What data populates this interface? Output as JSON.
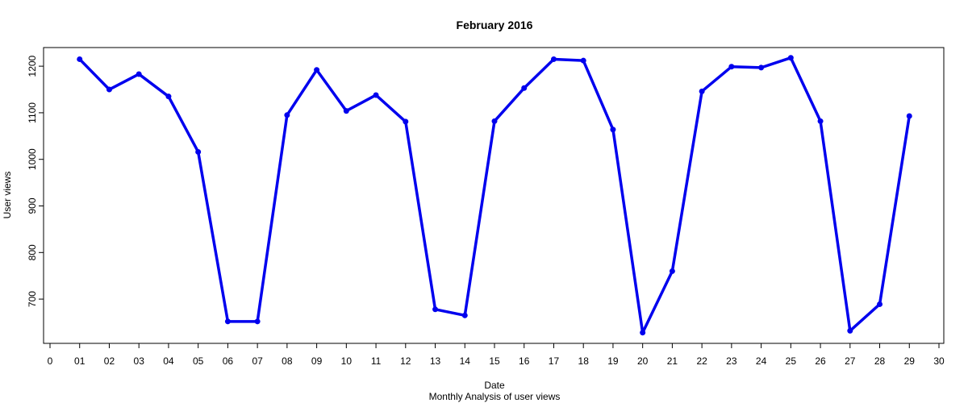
{
  "chart_data": {
    "type": "line",
    "title": "February 2016",
    "xlabel": "Date",
    "ylabel": "User views",
    "subtitle": "Monthly Analysis of user views",
    "xlim": [
      0,
      30
    ],
    "ylim": [
      605,
      1240
    ],
    "x_ticks": [
      "0",
      "01",
      "02",
      "03",
      "04",
      "05",
      "06",
      "07",
      "08",
      "09",
      "10",
      "11",
      "12",
      "13",
      "14",
      "15",
      "16",
      "17",
      "18",
      "19",
      "20",
      "21",
      "22",
      "23",
      "24",
      "25",
      "26",
      "27",
      "28",
      "29",
      "30"
    ],
    "y_ticks": [
      700,
      800,
      900,
      1000,
      1100,
      1200
    ],
    "grid": false,
    "series_color": "#0000ee",
    "series": [
      {
        "x": [
          1,
          2,
          3,
          4,
          5,
          6,
          7,
          8,
          9,
          10,
          11,
          12,
          13,
          14,
          15,
          16,
          17,
          18,
          19,
          20,
          21,
          22,
          23,
          24,
          25,
          26,
          27,
          28,
          29
        ],
        "values": [
          1215,
          1150,
          1183,
          1135,
          1016,
          652,
          652,
          1095,
          1192,
          1104,
          1138,
          1081,
          678,
          665,
          1082,
          1153,
          1215,
          1212,
          1064,
          628,
          760,
          1146,
          1199,
          1197,
          1218,
          1082,
          632,
          689,
          1093
        ]
      }
    ]
  }
}
